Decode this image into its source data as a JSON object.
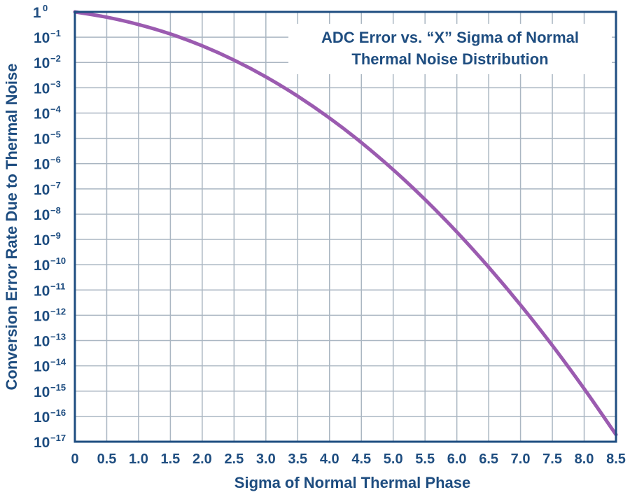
{
  "chart_data": {
    "type": "line",
    "title_lines": [
      "ADC Error vs. “X” Sigma of Normal",
      "Thermal Noise Distribution"
    ],
    "xlabel": "Sigma of Normal Thermal Phase",
    "ylabel": "Conversion Error Rate Due to Thermal Noise",
    "xlim": [
      0,
      8.5
    ],
    "ylim_exponent": [
      -17,
      0
    ],
    "y_scale": "log",
    "grid": true,
    "x_ticks": [
      "0",
      "0.5",
      "1.0",
      "1.5",
      "2.0",
      "2.5",
      "3.0",
      "3.5",
      "4.0",
      "4.5",
      "5.0",
      "5.5",
      "6.0",
      "6.5",
      "7.0",
      "7.5",
      "8.0",
      "8.5"
    ],
    "y_ticks": [
      {
        "base": "1",
        "exp": "0"
      },
      {
        "base": "10",
        "exp": "−1"
      },
      {
        "base": "10",
        "exp": "−2"
      },
      {
        "base": "10",
        "exp": "−3"
      },
      {
        "base": "10",
        "exp": "−4"
      },
      {
        "base": "10",
        "exp": "−5"
      },
      {
        "base": "10",
        "exp": "−6"
      },
      {
        "base": "10",
        "exp": "−7"
      },
      {
        "base": "10",
        "exp": "−8"
      },
      {
        "base": "10",
        "exp": "−9"
      },
      {
        "base": "10",
        "exp": "−10"
      },
      {
        "base": "10",
        "exp": "−11"
      },
      {
        "base": "10",
        "exp": "−12"
      },
      {
        "base": "10",
        "exp": "−13"
      },
      {
        "base": "10",
        "exp": "−14"
      },
      {
        "base": "10",
        "exp": "−15"
      },
      {
        "base": "10",
        "exp": "−16"
      },
      {
        "base": "10",
        "exp": "−17"
      }
    ],
    "series": [
      {
        "color": "#9b5bb0",
        "x": [
          0,
          0.5,
          1.0,
          1.5,
          2.0,
          2.5,
          3.0,
          3.5,
          4.0,
          4.5,
          5.0,
          5.5,
          6.0,
          6.5,
          7.0,
          7.5,
          8.0,
          8.5
        ],
        "y": [
          1.0,
          0.617,
          0.317,
          0.134,
          0.0455,
          0.0124,
          0.0027,
          0.000465,
          6.33e-05,
          6.8e-06,
          5.73e-07,
          3.8e-08,
          1.97e-09,
          8e-11,
          2.56e-12,
          6.4e-14,
          1.24e-15,
          1.9e-17
        ]
      }
    ],
    "colors": {
      "axis": "#1e4d80",
      "grid": "#aab6c2",
      "curve": "#9b5bb0"
    }
  }
}
